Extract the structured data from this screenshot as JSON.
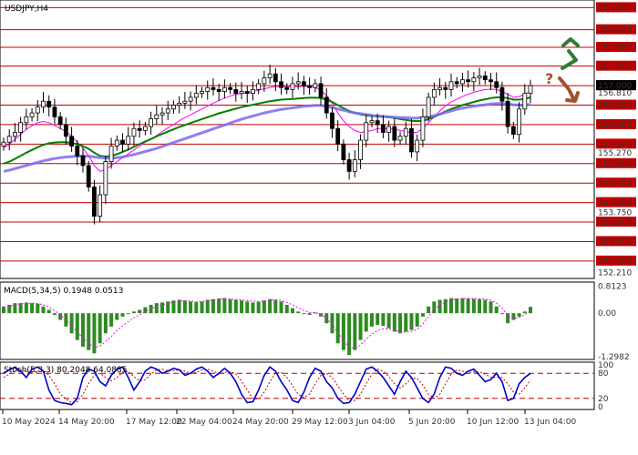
{
  "chart_data": {
    "type": "candlestick",
    "symbol": "USDJPY,H4",
    "x_labels": [
      "10 May 2024",
      "14 May 20:00",
      "17 May 12:00",
      "22 May 04:00",
      "24 May 20:00",
      "29 May 12:00",
      "3 Jun 04:00",
      "5 Jun 20:00",
      "10 Jun 12:00",
      "13 Jun 04:00"
    ],
    "price_axis": {
      "labels": [
        "159.000",
        "158.435",
        "157.982",
        "157.500",
        "157.000",
        "156.810",
        "156.500",
        "156.000",
        "155.500",
        "155.270",
        "155.000",
        "154.500",
        "154.000",
        "153.750",
        "153.500",
        "153.000",
        "152.500",
        "152.210"
      ],
      "range": [
        152.1,
        159.15
      ],
      "red_levels": [
        159.0,
        158.435,
        157.982,
        157.5,
        157.0,
        156.5,
        156.0,
        155.5,
        155.0,
        154.5,
        154.0,
        153.5,
        153.0,
        152.5
      ],
      "current": {
        "label": "157.000",
        "value": 157.0,
        "color": "#000000"
      }
    },
    "close_series": [
      155.55,
      155.7,
      155.8,
      156.05,
      156.2,
      156.3,
      156.45,
      156.6,
      156.45,
      156.2,
      156.0,
      155.7,
      155.45,
      155.2,
      154.95,
      154.4,
      153.65,
      154.2,
      155.05,
      155.45,
      155.6,
      155.5,
      155.7,
      155.9,
      155.85,
      155.95,
      156.15,
      156.25,
      156.3,
      156.4,
      156.5,
      156.55,
      156.6,
      156.7,
      156.8,
      156.85,
      156.95,
      156.9,
      156.85,
      156.95,
      156.9,
      156.8,
      156.85,
      156.8,
      156.9,
      157.05,
      157.2,
      157.3,
      157.1,
      156.95,
      156.9,
      157.05,
      157.1,
      157.0,
      156.95,
      157.05,
      156.7,
      156.3,
      155.9,
      155.5,
      155.1,
      154.8,
      155.1,
      155.6,
      156.05,
      156.1,
      156.0,
      155.8,
      155.95,
      155.6,
      155.7,
      155.9,
      155.3,
      155.6,
      156.2,
      156.7,
      156.9,
      156.95,
      156.9,
      157.1,
      157.05,
      157.15,
      157.1,
      157.2,
      157.25,
      157.15,
      157.1,
      156.95,
      156.6,
      155.95,
      155.75,
      156.4,
      156.8,
      157.0
    ],
    "moving_averages": [
      {
        "color": "#ff00ff",
        "values": [
          155.4,
          155.5,
          155.62,
          155.75,
          155.88,
          155.97,
          156.05,
          156.08,
          156.05,
          155.98,
          155.9,
          155.82,
          155.7,
          155.55,
          155.4,
          155.2,
          154.95,
          154.8,
          154.85,
          154.95,
          155.05,
          155.15,
          155.25,
          155.35,
          155.45,
          155.55,
          155.62,
          155.72,
          155.82,
          155.92,
          156.0,
          156.1,
          156.18,
          156.25,
          156.33,
          156.4,
          156.48,
          156.55,
          156.62,
          156.68,
          156.73,
          156.78,
          156.8,
          156.82,
          156.85,
          156.88,
          156.92,
          156.95,
          156.98,
          156.98,
          156.98,
          156.98,
          156.98,
          156.98,
          156.98,
          156.95,
          156.88,
          156.75,
          156.55,
          156.3,
          156.1,
          155.95,
          155.85,
          155.8,
          155.82,
          155.85,
          155.9,
          155.9,
          155.9,
          155.88,
          155.85,
          155.82,
          155.8,
          155.8,
          155.9,
          156.05,
          156.2,
          156.35,
          156.48,
          156.58,
          156.65,
          156.72,
          156.78,
          156.83,
          156.87,
          156.9,
          156.91,
          156.9,
          156.85,
          156.78,
          156.7,
          156.72,
          156.78,
          156.85
        ]
      },
      {
        "color": "#008000",
        "values": [
          155.0,
          155.05,
          155.12,
          155.2,
          155.28,
          155.35,
          155.42,
          155.48,
          155.52,
          155.54,
          155.55,
          155.55,
          155.53,
          155.5,
          155.45,
          155.38,
          155.28,
          155.2,
          155.18,
          155.2,
          155.24,
          155.3,
          155.36,
          155.43,
          155.5,
          155.57,
          155.63,
          155.7,
          155.76,
          155.82,
          155.88,
          155.94,
          155.99,
          156.04,
          156.09,
          156.14,
          156.19,
          156.24,
          156.29,
          156.33,
          156.37,
          156.41,
          156.45,
          156.48,
          156.51,
          156.54,
          156.57,
          156.6,
          156.62,
          156.64,
          156.65,
          156.66,
          156.67,
          156.68,
          156.69,
          156.69,
          156.68,
          156.64,
          156.58,
          156.5,
          156.42,
          156.35,
          156.3,
          156.26,
          156.24,
          156.22,
          156.21,
          156.2,
          156.19,
          156.17,
          156.14,
          156.12,
          156.1,
          156.09,
          156.1,
          156.14,
          156.2,
          156.27,
          156.34,
          156.4,
          156.45,
          156.5,
          156.54,
          156.58,
          156.62,
          156.65,
          156.68,
          156.7,
          156.7,
          156.68,
          156.64,
          156.64,
          156.66,
          156.7
        ]
      },
      {
        "color": "#7b68ee",
        "values": [
          154.8,
          154.83,
          154.87,
          154.91,
          154.95,
          154.99,
          155.03,
          155.07,
          155.1,
          155.13,
          155.15,
          155.17,
          155.18,
          155.19,
          155.19,
          155.19,
          155.17,
          155.15,
          155.14,
          155.14,
          155.15,
          155.17,
          155.2,
          155.23,
          155.27,
          155.31,
          155.35,
          155.39,
          155.44,
          155.49,
          155.54,
          155.59,
          155.64,
          155.69,
          155.74,
          155.79,
          155.84,
          155.89,
          155.94,
          155.99,
          156.04,
          156.09,
          156.14,
          156.18,
          156.22,
          156.26,
          156.3,
          156.33,
          156.36,
          156.39,
          156.41,
          156.43,
          156.45,
          156.47,
          156.48,
          156.49,
          156.49,
          156.47,
          156.44,
          156.4,
          156.37,
          156.33,
          156.3,
          156.28,
          156.26,
          156.24,
          156.22,
          156.21,
          156.2,
          156.19,
          156.18,
          156.18,
          156.17,
          156.17,
          156.18,
          156.2,
          156.23,
          156.27,
          156.31,
          156.35,
          156.39,
          156.42,
          156.45,
          156.47,
          156.49,
          156.51,
          156.53,
          156.54,
          156.54,
          156.53,
          156.51,
          156.5,
          156.5,
          156.52
        ]
      }
    ],
    "forecast_arrows": [
      {
        "direction": "up",
        "color": "#2e7d32"
      },
      {
        "direction": "down",
        "color": "#a0522d",
        "label": "?"
      }
    ],
    "macd": {
      "label": "MACD(5,34,5) 0.1948 0.0513",
      "axis_labels": [
        "0.8123",
        "0.00",
        "-1.2982"
      ],
      "range": [
        -1.3,
        0.82
      ],
      "histogram": [
        0.2,
        0.25,
        0.3,
        0.3,
        0.32,
        0.3,
        0.28,
        0.2,
        0.1,
        -0.05,
        -0.2,
        -0.4,
        -0.6,
        -0.8,
        -1.0,
        -1.1,
        -1.2,
        -0.9,
        -0.6,
        -0.4,
        -0.2,
        -0.1,
        0.0,
        0.05,
        0.1,
        0.18,
        0.25,
        0.3,
        0.32,
        0.35,
        0.38,
        0.4,
        0.38,
        0.35,
        0.33,
        0.35,
        0.4,
        0.42,
        0.44,
        0.45,
        0.42,
        0.4,
        0.38,
        0.35,
        0.32,
        0.34,
        0.38,
        0.42,
        0.4,
        0.35,
        0.25,
        0.15,
        0.05,
        -0.02,
        -0.05,
        0.02,
        -0.1,
        -0.3,
        -0.6,
        -0.9,
        -1.1,
        -1.25,
        -1.1,
        -0.8,
        -0.55,
        -0.4,
        -0.35,
        -0.38,
        -0.45,
        -0.55,
        -0.6,
        -0.55,
        -0.5,
        -0.4,
        -0.1,
        0.2,
        0.35,
        0.4,
        0.42,
        0.45,
        0.44,
        0.45,
        0.44,
        0.43,
        0.42,
        0.4,
        0.35,
        0.2,
        0.0,
        -0.3,
        -0.2,
        -0.1,
        0.05,
        0.19
      ],
      "signal": [
        0.18,
        0.21,
        0.25,
        0.28,
        0.3,
        0.3,
        0.29,
        0.25,
        0.18,
        0.08,
        -0.05,
        -0.2,
        -0.38,
        -0.55,
        -0.75,
        -0.9,
        -1.02,
        -0.98,
        -0.85,
        -0.7,
        -0.52,
        -0.38,
        -0.25,
        -0.14,
        -0.05,
        0.05,
        0.13,
        0.2,
        0.25,
        0.29,
        0.33,
        0.36,
        0.37,
        0.36,
        0.35,
        0.35,
        0.37,
        0.39,
        0.41,
        0.43,
        0.42,
        0.41,
        0.4,
        0.38,
        0.36,
        0.35,
        0.36,
        0.39,
        0.4,
        0.38,
        0.32,
        0.25,
        0.16,
        0.08,
        0.02,
        0.02,
        -0.03,
        -0.15,
        -0.35,
        -0.58,
        -0.82,
        -1.0,
        -1.05,
        -0.95,
        -0.78,
        -0.62,
        -0.52,
        -0.47,
        -0.47,
        -0.51,
        -0.56,
        -0.56,
        -0.54,
        -0.48,
        -0.32,
        -0.1,
        0.1,
        0.24,
        0.33,
        0.4,
        0.42,
        0.44,
        0.44,
        0.44,
        0.43,
        0.42,
        0.39,
        0.3,
        0.15,
        -0.08,
        -0.15,
        -0.13,
        -0.04,
        0.05
      ]
    },
    "stochastic": {
      "label": "Stoch(5,3,3) 80.2048 64.0885",
      "axis_labels": [
        "100",
        "80",
        "20",
        "0"
      ],
      "range": [
        0,
        100
      ],
      "levels": [
        80,
        20
      ],
      "main": [
        80,
        88,
        95,
        85,
        70,
        90,
        95,
        85,
        40,
        15,
        10,
        8,
        5,
        20,
        70,
        90,
        85,
        60,
        50,
        75,
        90,
        95,
        70,
        40,
        60,
        85,
        95,
        90,
        80,
        85,
        92,
        88,
        75,
        80,
        90,
        95,
        85,
        70,
        80,
        92,
        80,
        60,
        30,
        10,
        12,
        40,
        75,
        95,
        85,
        60,
        40,
        15,
        10,
        35,
        70,
        92,
        85,
        60,
        45,
        20,
        8,
        10,
        30,
        60,
        90,
        95,
        85,
        70,
        50,
        30,
        60,
        85,
        70,
        45,
        20,
        10,
        30,
        70,
        95,
        92,
        80,
        75,
        85,
        90,
        75,
        60,
        65,
        80,
        60,
        15,
        20,
        55,
        70,
        80
      ],
      "signal": [
        70,
        78,
        86,
        88,
        85,
        82,
        85,
        88,
        75,
        55,
        30,
        18,
        10,
        12,
        30,
        55,
        75,
        80,
        70,
        62,
        70,
        82,
        85,
        72,
        62,
        65,
        78,
        88,
        90,
        86,
        86,
        88,
        85,
        80,
        82,
        88,
        90,
        85,
        78,
        82,
        84,
        78,
        62,
        40,
        20,
        18,
        35,
        60,
        80,
        82,
        70,
        50,
        30,
        22,
        30,
        55,
        75,
        80,
        70,
        50,
        30,
        15,
        15,
        30,
        55,
        78,
        90,
        85,
        72,
        55,
        45,
        55,
        68,
        68,
        52,
        30,
        20,
        30,
        55,
        78,
        88,
        85,
        82,
        83,
        83,
        78,
        70,
        70,
        70,
        55,
        35,
        30,
        45,
        64
      ]
    }
  }
}
